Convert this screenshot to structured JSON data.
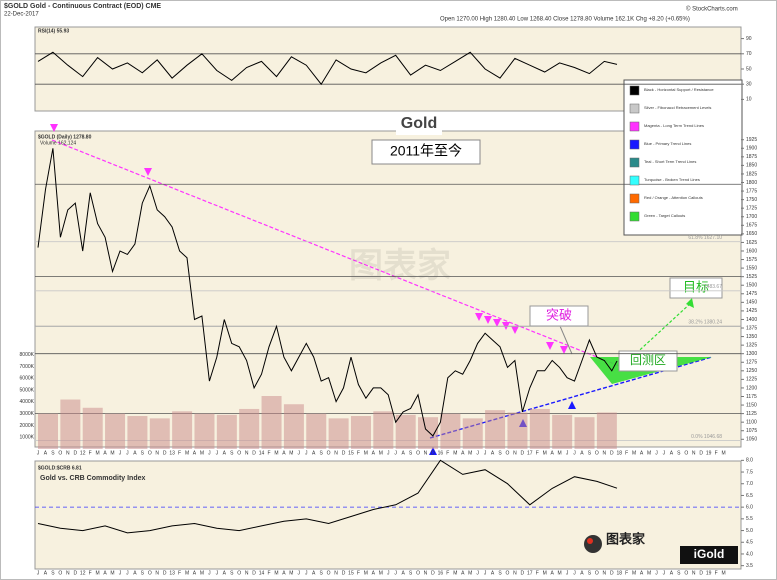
{
  "header": {
    "symbol_line": "$GOLD Gold - Continuous Contract (EOD) CME",
    "date": "22-Dec-2017",
    "quote": "Open 1270.00  High 1280.40  Low 1268.40  Close 1278.80  Volume 162.1K  Chg +8.20 (+0.65%)",
    "source": "© StockCharts.com"
  },
  "legend": [
    {
      "name": "Black - Horizontal Support / Resistance",
      "color": "#000000"
    },
    {
      "name": "Silver - Fibonacci Retracement Levels",
      "color": "#c8c8c8"
    },
    {
      "name": "Magenta - Long Term Trend Lines",
      "color": "#ff33ff"
    },
    {
      "name": "Blue - Primary Trend Lines",
      "color": "#1a1aff"
    },
    {
      "name": "Teal - Short Term Trend Lines",
      "color": "#2a8a8a"
    },
    {
      "name": "Turquoise - Broken Trend Lines",
      "color": "#33ffff"
    },
    {
      "name": "Red / Orange - Attention Callouts",
      "color": "#ff6a00"
    },
    {
      "name": "Green - Target Callouts",
      "color": "#33dd33"
    }
  ],
  "watermarks": [
    "图表家",
    "iGold"
  ],
  "chart_data": [
    {
      "type": "line",
      "label": "RSI(14) 55.93",
      "color": "#000000",
      "x": [
        0,
        2,
        4,
        6,
        8,
        10,
        12,
        14,
        16,
        18,
        20,
        22,
        24,
        26,
        28,
        30,
        32,
        34,
        36,
        38,
        40,
        42,
        44,
        46,
        48,
        50,
        52,
        54,
        56,
        58,
        60,
        62,
        64,
        66,
        68,
        70,
        72,
        74,
        76,
        77.7
      ],
      "values": [
        60,
        72,
        55,
        40,
        65,
        50,
        58,
        45,
        62,
        38,
        55,
        70,
        48,
        35,
        52,
        60,
        40,
        66,
        55,
        30,
        62,
        50,
        45,
        58,
        68,
        42,
        55,
        48,
        60,
        72,
        50,
        38,
        64,
        55,
        46,
        58,
        52,
        44,
        60,
        56
      ],
      "xlim": [
        0,
        93
      ],
      "ylim": [
        0,
        100
      ],
      "yticks": [
        10,
        30,
        50,
        70,
        90
      ],
      "hlines": [
        30,
        70
      ]
    },
    {
      "type": "line",
      "title": "Gold",
      "subtitle": "2011年至今",
      "label": "$GOLD (Daily) 1278.80",
      "volume_label": "Volume 162,124",
      "color": "#000000",
      "categories": [
        "J",
        "A",
        "S",
        "O",
        "N",
        "D",
        "12",
        "F",
        "M",
        "A",
        "M",
        "J",
        "J",
        "A",
        "S",
        "O",
        "N",
        "D",
        "13",
        "F",
        "M",
        "A",
        "M",
        "J",
        "J",
        "A",
        "S",
        "O",
        "N",
        "D",
        "14",
        "F",
        "M",
        "A",
        "M",
        "J",
        "J",
        "A",
        "S",
        "O",
        "N",
        "D",
        "15",
        "F",
        "M",
        "A",
        "M",
        "J",
        "J",
        "A",
        "S",
        "O",
        "N",
        "D",
        "16",
        "F",
        "M",
        "A",
        "M",
        "J",
        "J",
        "A",
        "S",
        "O",
        "N",
        "D",
        "17",
        "F",
        "M",
        "A",
        "M",
        "J",
        "J",
        "A",
        "S",
        "O",
        "N",
        "D",
        "18",
        "F",
        "M",
        "A",
        "M",
        "J",
        "J",
        "A",
        "S",
        "O",
        "N",
        "D",
        "19",
        "F",
        "M"
      ],
      "x": [
        0,
        1,
        2,
        3,
        4,
        5,
        6,
        7,
        8,
        9,
        10,
        11,
        12,
        13,
        14,
        15,
        16,
        17,
        18,
        19,
        20,
        21,
        22,
        23,
        24,
        25,
        26,
        27,
        28,
        29,
        30,
        31,
        32,
        33,
        34,
        35,
        36,
        37,
        38,
        39,
        40,
        41,
        42,
        43,
        44,
        45,
        46,
        47,
        48,
        49,
        50,
        51,
        52,
        53,
        54,
        55,
        56,
        57,
        58,
        59,
        60,
        61,
        62,
        63,
        64,
        65,
        66,
        67,
        68,
        69,
        70,
        71,
        72,
        73,
        74,
        75,
        76,
        77,
        77.7
      ],
      "values": [
        1610,
        1780,
        1900,
        1640,
        1720,
        1740,
        1600,
        1770,
        1680,
        1640,
        1540,
        1600,
        1590,
        1620,
        1740,
        1790,
        1720,
        1700,
        1670,
        1600,
        1580,
        1400,
        1410,
        1220,
        1290,
        1400,
        1330,
        1320,
        1280,
        1200,
        1240,
        1320,
        1380,
        1290,
        1250,
        1290,
        1330,
        1290,
        1220,
        1230,
        1160,
        1200,
        1290,
        1210,
        1170,
        1200,
        1200,
        1180,
        1100,
        1130,
        1140,
        1180,
        1080,
        1060,
        1100,
        1230,
        1250,
        1240,
        1280,
        1330,
        1360,
        1340,
        1320,
        1260,
        1280,
        1130,
        1200,
        1250,
        1250,
        1280,
        1260,
        1230,
        1220,
        1280,
        1340,
        1290,
        1280,
        1250,
        1278.8
      ],
      "xlim": [
        0,
        93
      ],
      "ylim": [
        1045,
        1930
      ],
      "yticks": [
        1050,
        1075,
        1100,
        1125,
        1150,
        1175,
        1200,
        1225,
        1250,
        1275,
        1300,
        1325,
        1350,
        1375,
        1400,
        1425,
        1450,
        1475,
        1500,
        1525,
        1550,
        1575,
        1600,
        1625,
        1650,
        1675,
        1700,
        1725,
        1750,
        1775,
        1800,
        1825,
        1850,
        1875,
        1900,
        1925
      ],
      "hlines": [
        1795,
        1525,
        1380,
        1300,
        1125
      ],
      "fib_levels": [
        {
          "value": 1627.1,
          "label": "61.8% 1627.10"
        },
        {
          "value": 1483.67,
          "label": "1483.67"
        },
        {
          "value": 1380.24,
          "label": "38.2% 1380.24"
        },
        {
          "value": 1046.68,
          "label": "0.0% 1046.68"
        }
      ],
      "annotations": {
        "breakout": "突破",
        "target": "目标",
        "retest": "回测区"
      },
      "volume": {
        "color": "#c98a8a",
        "x": [
          0,
          3,
          6,
          9,
          12,
          15,
          18,
          21,
          24,
          27,
          30,
          33,
          36,
          39,
          42,
          45,
          48,
          51,
          54,
          57,
          60,
          63,
          66,
          69,
          72,
          75
        ],
        "values": [
          3000,
          4200,
          3500,
          3000,
          2800,
          2600,
          3200,
          3000,
          2900,
          3400,
          4500,
          3800,
          3000,
          2600,
          2800,
          3200,
          2900,
          2700,
          3000,
          2600,
          3300,
          3100,
          3400,
          2900,
          2700,
          3100
        ],
        "ylim": [
          0,
          9000
        ],
        "yticks": [
          {
            "value": 1000,
            "label": "1000K"
          },
          {
            "value": 2000,
            "label": "2000K"
          },
          {
            "value": 3000,
            "label": "3000K"
          },
          {
            "value": 4000,
            "label": "4000K"
          },
          {
            "value": 5000,
            "label": "5000K"
          },
          {
            "value": 6000,
            "label": "6000K"
          },
          {
            "value": 7000,
            "label": "7000K"
          },
          {
            "value": 8000,
            "label": "8000K"
          }
        ]
      }
    },
    {
      "type": "line",
      "title": "Gold vs. CRB Commodity Index",
      "label": "$GOLD:$CRB 6.81",
      "color": "#000000",
      "x": [
        0,
        3,
        6,
        9,
        12,
        15,
        18,
        21,
        24,
        27,
        30,
        33,
        36,
        39,
        42,
        45,
        48,
        51,
        54,
        57,
        60,
        63,
        66,
        69,
        72,
        75,
        77.7
      ],
      "values": [
        5.3,
        5.1,
        5.0,
        5.2,
        4.9,
        5.0,
        5.2,
        5.3,
        5.1,
        5.0,
        5.2,
        5.4,
        5.5,
        5.3,
        5.6,
        5.9,
        6.1,
        6.6,
        8.0,
        7.4,
        7.6,
        7.0,
        6.1,
        6.8,
        7.3,
        7.1,
        6.81
      ],
      "xlim": [
        0,
        93
      ],
      "ylim": [
        3.4,
        8.1
      ],
      "yticks": [
        {
          "value": 3.5,
          "label": "3.5"
        },
        {
          "value": 4.0,
          "label": "4.0"
        },
        {
          "value": 4.5,
          "label": "4.5"
        },
        {
          "value": 5.0,
          "label": "5.0"
        },
        {
          "value": 5.5,
          "label": "5.5"
        },
        {
          "value": 6.0,
          "label": "6.0"
        },
        {
          "value": 6.5,
          "label": "6.5"
        },
        {
          "value": 7.0,
          "label": "7.0"
        },
        {
          "value": 7.5,
          "label": "7.5"
        },
        {
          "value": 8.0,
          "label": "8.0"
        }
      ],
      "hlines": [
        6
      ]
    }
  ]
}
